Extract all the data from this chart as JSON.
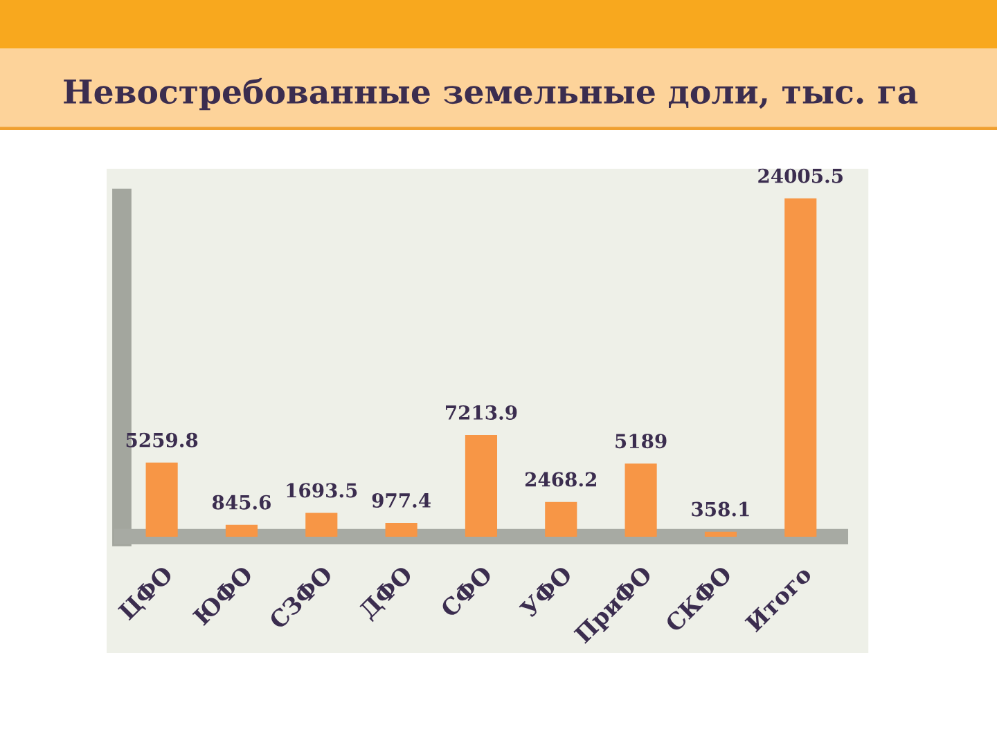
{
  "chart_data": {
    "type": "bar",
    "title": "Невостребованные земельные доли, тыс. га",
    "categories": [
      "ЦФО",
      "ЮФО",
      "СЗФО",
      "ДФО",
      "СФО",
      "УФО",
      "ПриФО",
      "СКФО",
      "Итого"
    ],
    "values": [
      5259.8,
      845.6,
      1693.5,
      977.4,
      7213.9,
      2468.2,
      5189,
      358.1,
      24005.5
    ],
    "color": "#f79646",
    "data_labels": true
  }
}
